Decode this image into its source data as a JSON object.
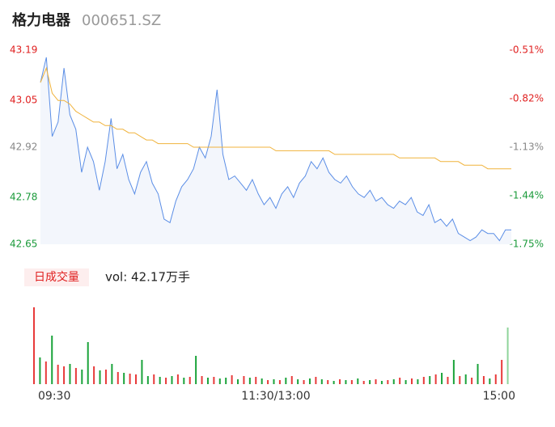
{
  "header": {
    "name": "格力电器",
    "code": "000651.SZ"
  },
  "volume_button": "日成交量",
  "volume_label": "vol: 42.17万手",
  "chart_data": [
    {
      "type": "line",
      "x": [
        0,
        3,
        6,
        9,
        12,
        15,
        18,
        21,
        24,
        27,
        30,
        33,
        36,
        39,
        42,
        45,
        48,
        51,
        54,
        57,
        60,
        63,
        66,
        69,
        72,
        75,
        78,
        81,
        84,
        87,
        90,
        93,
        96,
        99,
        102,
        105,
        108,
        111,
        114,
        117,
        120,
        123,
        126,
        129,
        132,
        135,
        138,
        141,
        144,
        147,
        150,
        153,
        156,
        159,
        162,
        165,
        168,
        171,
        174,
        177,
        180,
        183,
        186,
        189,
        192,
        195,
        198,
        201,
        204,
        207,
        210,
        213,
        216,
        219,
        222,
        225,
        228,
        231,
        234,
        237,
        240
      ],
      "xlim": [
        0,
        240
      ],
      "xticks": [
        {
          "value": 0,
          "label": "09:30"
        },
        {
          "value": 120,
          "label": "11:30/13:00"
        },
        {
          "value": 240,
          "label": "15:00"
        }
      ],
      "ylim": [
        42.65,
        43.19
      ],
      "yticks": [
        42.65,
        42.78,
        42.92,
        43.05,
        43.19
      ],
      "ytick_colors": [
        "#1a9a3a",
        "#1a9a3a",
        "#888888",
        "#e02020",
        "#e02020"
      ],
      "y2lim": [
        -1.75,
        -0.51
      ],
      "y2ticks": [
        {
          "value": -1.75,
          "label": "-1.75%"
        },
        {
          "value": -1.44,
          "label": "-1.44%"
        },
        {
          "value": -1.13,
          "label": "-1.13%"
        },
        {
          "value": -0.82,
          "label": "-0.82%"
        },
        {
          "value": -0.51,
          "label": "-0.51%"
        }
      ],
      "series": [
        {
          "color": "#5b8ee6",
          "fill": "#f3f6fc",
          "values": [
            43.1,
            43.17,
            42.95,
            42.99,
            43.14,
            43.01,
            42.97,
            42.85,
            42.92,
            42.88,
            42.8,
            42.88,
            43.0,
            42.86,
            42.9,
            42.83,
            42.79,
            42.85,
            42.88,
            42.82,
            42.79,
            42.72,
            42.71,
            42.77,
            42.81,
            42.83,
            42.86,
            42.92,
            42.89,
            42.95,
            43.08,
            42.9,
            42.83,
            42.84,
            42.82,
            42.8,
            42.83,
            42.79,
            42.76,
            42.78,
            42.75,
            42.79,
            42.81,
            42.78,
            42.82,
            42.84,
            42.88,
            42.86,
            42.89,
            42.85,
            42.83,
            42.82,
            42.84,
            42.81,
            42.79,
            42.78,
            42.8,
            42.77,
            42.78,
            42.76,
            42.75,
            42.77,
            42.76,
            42.78,
            42.74,
            42.73,
            42.76,
            42.71,
            42.72,
            42.7,
            42.72,
            42.68,
            42.67,
            42.66,
            42.67,
            42.69,
            42.68,
            42.68,
            42.66,
            42.69,
            42.69
          ]
        },
        {
          "color": "#f0b33c",
          "values": [
            43.1,
            43.14,
            43.07,
            43.05,
            43.05,
            43.04,
            43.02,
            43.01,
            43.0,
            42.99,
            42.99,
            42.98,
            42.98,
            42.97,
            42.97,
            42.96,
            42.96,
            42.95,
            42.94,
            42.94,
            42.93,
            42.93,
            42.93,
            42.93,
            42.93,
            42.93,
            42.92,
            42.92,
            42.92,
            42.92,
            42.92,
            42.92,
            42.92,
            42.92,
            42.92,
            42.92,
            42.92,
            42.92,
            42.92,
            42.92,
            42.91,
            42.91,
            42.91,
            42.91,
            42.91,
            42.91,
            42.91,
            42.91,
            42.91,
            42.91,
            42.9,
            42.9,
            42.9,
            42.9,
            42.9,
            42.9,
            42.9,
            42.9,
            42.9,
            42.9,
            42.9,
            42.89,
            42.89,
            42.89,
            42.89,
            42.89,
            42.89,
            42.89,
            42.88,
            42.88,
            42.88,
            42.88,
            42.87,
            42.87,
            42.87,
            42.87,
            42.86,
            42.86,
            42.86,
            42.86,
            42.86
          ]
        }
      ]
    },
    {
      "type": "bar",
      "ylim": [
        0,
        100
      ],
      "values": [
        95,
        33,
        28,
        60,
        24,
        22,
        25,
        20,
        18,
        52,
        22,
        17,
        18,
        25,
        15,
        14,
        13,
        12,
        30,
        10,
        12,
        9,
        8,
        10,
        12,
        8,
        9,
        35,
        10,
        8,
        9,
        7,
        8,
        11,
        6,
        10,
        8,
        9,
        7,
        5,
        6,
        5,
        8,
        10,
        6,
        5,
        7,
        9,
        6,
        5,
        4,
        6,
        5,
        5,
        7,
        4,
        5,
        6,
        4,
        5,
        6,
        8,
        5,
        7,
        6,
        9,
        10,
        12,
        14,
        9,
        30,
        10,
        12,
        8,
        25,
        10,
        7,
        12,
        30,
        70
      ],
      "colors": [
        "#e83a3a",
        "#1aa33a",
        "#e83a3a",
        "#1aa33a",
        "#e83a3a",
        "#e83a3a",
        "#1aa33a",
        "#e83a3a",
        "#1aa33a",
        "#1aa33a",
        "#e83a3a",
        "#1aa33a",
        "#e83a3a",
        "#1aa33a",
        "#e83a3a",
        "#1aa33a",
        "#e83a3a",
        "#e83a3a",
        "#1aa33a",
        "#1aa33a",
        "#e83a3a",
        "#1aa33a",
        "#e83a3a",
        "#1aa33a",
        "#e83a3a",
        "#1aa33a",
        "#e83a3a",
        "#1aa33a",
        "#e83a3a",
        "#1aa33a",
        "#e83a3a",
        "#1aa33a",
        "#1aa33a",
        "#e83a3a",
        "#1aa33a",
        "#e83a3a",
        "#1aa33a",
        "#e83a3a",
        "#1aa33a",
        "#e83a3a",
        "#1aa33a",
        "#e83a3a",
        "#1aa33a",
        "#e83a3a",
        "#1aa33a",
        "#e83a3a",
        "#1aa33a",
        "#e83a3a",
        "#1aa33a",
        "#e83a3a",
        "#1aa33a",
        "#e83a3a",
        "#1aa33a",
        "#e83a3a",
        "#1aa33a",
        "#e83a3a",
        "#1aa33a",
        "#e83a3a",
        "#1aa33a",
        "#e83a3a",
        "#1aa33a",
        "#e83a3a",
        "#1aa33a",
        "#e83a3a",
        "#1aa33a",
        "#e83a3a",
        "#1aa33a",
        "#e83a3a",
        "#1aa33a",
        "#e83a3a",
        "#1aa33a",
        "#e83a3a",
        "#1aa33a",
        "#e83a3a",
        "#1aa33a",
        "#e83a3a",
        "#1aa33a",
        "#e83a3a",
        "#e83a3a",
        "#8fd49a"
      ]
    }
  ]
}
